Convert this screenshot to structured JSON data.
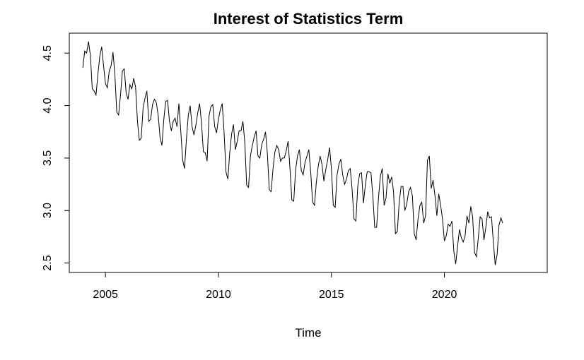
{
  "chart_data": {
    "type": "line",
    "title": "Interest of Statistics Term",
    "xlabel": "Time",
    "ylabel": "",
    "xlim": [
      2003.4,
      2024.55
    ],
    "ylim": [
      2.41,
      4.69
    ],
    "x_ticks": [
      2005,
      2010,
      2015,
      2020
    ],
    "x_tick_labels": [
      "2005",
      "2010",
      "2015",
      "2020"
    ],
    "y_ticks": [
      2.5,
      3.0,
      3.5,
      4.0,
      4.5
    ],
    "y_tick_labels": [
      "2.5",
      "3.0",
      "3.5",
      "4.0",
      "4.5"
    ],
    "grid": false,
    "legend": "none",
    "line_color": "#000000",
    "series": [
      {
        "x_start": 2004.0,
        "x_step": 0.08333,
        "values": [
          4.36,
          4.52,
          4.5,
          4.61,
          4.48,
          4.16,
          4.14,
          4.1,
          4.3,
          4.47,
          4.56,
          4.38,
          4.21,
          4.17,
          4.33,
          4.38,
          4.51,
          4.3,
          3.94,
          3.91,
          4.1,
          4.33,
          4.35,
          4.12,
          4.06,
          4.2,
          4.16,
          4.26,
          4.18,
          3.85,
          3.67,
          3.69,
          3.98,
          4.07,
          4.14,
          3.85,
          3.87,
          4.01,
          4.06,
          4.03,
          3.91,
          3.7,
          3.62,
          3.87,
          4.04,
          4.05,
          3.85,
          3.76,
          3.85,
          3.88,
          3.8,
          4.02,
          3.76,
          3.48,
          3.4,
          3.68,
          3.91,
          4.0,
          3.8,
          3.72,
          3.81,
          3.93,
          4.02,
          3.84,
          3.56,
          3.55,
          3.47,
          3.9,
          3.99,
          4.01,
          3.8,
          3.74,
          3.87,
          3.96,
          4.02,
          3.75,
          3.37,
          3.3,
          3.55,
          3.73,
          3.82,
          3.58,
          3.66,
          3.76,
          3.76,
          3.85,
          3.65,
          3.24,
          3.22,
          3.52,
          3.62,
          3.7,
          3.76,
          3.52,
          3.5,
          3.63,
          3.68,
          3.75,
          3.54,
          3.2,
          3.18,
          3.4,
          3.56,
          3.62,
          3.58,
          3.47,
          3.5,
          3.5,
          3.57,
          3.66,
          3.4,
          3.1,
          3.09,
          3.39,
          3.52,
          3.58,
          3.38,
          3.34,
          3.46,
          3.52,
          3.58,
          3.37,
          3.08,
          3.05,
          3.27,
          3.42,
          3.52,
          3.44,
          3.28,
          3.39,
          3.48,
          3.6,
          3.4,
          3.05,
          3.03,
          3.34,
          3.44,
          3.49,
          3.34,
          3.25,
          3.3,
          3.38,
          3.4,
          3.2,
          2.92,
          2.9,
          3.23,
          3.35,
          3.36,
          3.07,
          3.24,
          3.37,
          3.37,
          3.36,
          3.14,
          2.84,
          2.84,
          3.12,
          3.33,
          3.4,
          3.05,
          3.12,
          3.35,
          3.26,
          3.32,
          3.18,
          2.78,
          2.8,
          3.08,
          3.23,
          3.23,
          3.0,
          3.06,
          3.18,
          3.22,
          3.14,
          2.78,
          2.72,
          2.92,
          3.05,
          3.08,
          2.88,
          2.95,
          3.48,
          3.52,
          3.21,
          3.29,
          3.14,
          2.95,
          3.16,
          3.05,
          2.92,
          2.71,
          2.76,
          2.87,
          2.85,
          2.9,
          2.61,
          2.49,
          2.66,
          2.82,
          2.74,
          2.7,
          2.76,
          2.95,
          2.88,
          3.04,
          2.94,
          2.6,
          2.56,
          2.74,
          2.94,
          2.92,
          2.72,
          2.84,
          2.99,
          2.93,
          2.94,
          2.7,
          2.48,
          2.58,
          2.86,
          2.93,
          2.88
        ]
      }
    ]
  }
}
